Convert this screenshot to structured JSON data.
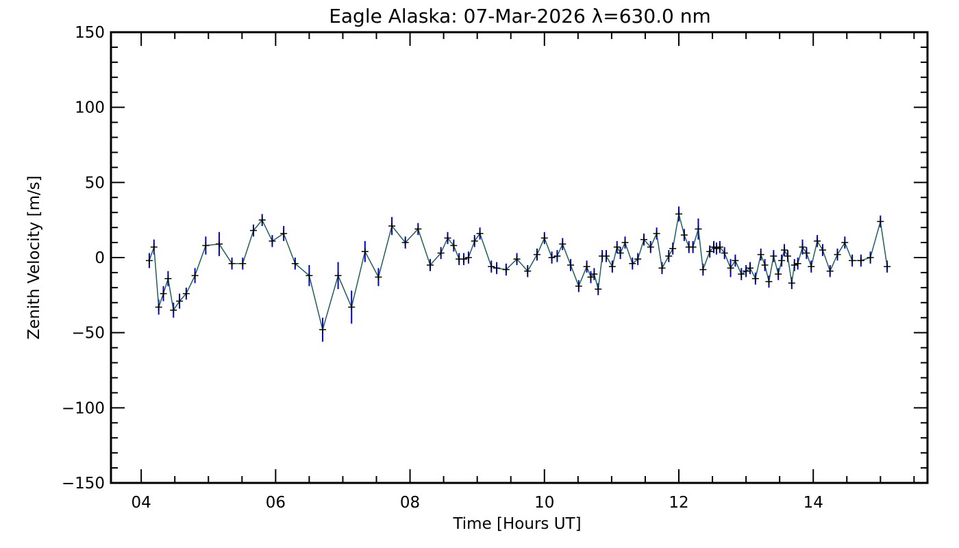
{
  "chart_data": {
    "type": "line",
    "title": "Eagle Alaska: 07-Mar-2026 λ=630.0 nm",
    "xlabel": "Time [Hours UT]",
    "ylabel": "Zenith Velocity [m/s]",
    "xlim": [
      3.55,
      15.7
    ],
    "ylim": [
      -150,
      150
    ],
    "x_ticks": [
      4,
      6,
      8,
      10,
      12,
      14
    ],
    "x_tick_labels": [
      "04",
      "06",
      "08",
      "10",
      "12",
      "14"
    ],
    "x_minor_step": 0.5,
    "y_ticks": [
      -150,
      -100,
      -50,
      0,
      50,
      100,
      150
    ],
    "y_tick_labels": [
      "−150",
      "−100",
      "−50",
      "0",
      "50",
      "100",
      "150"
    ],
    "y_minor_step": 10,
    "grid": false,
    "colors": {
      "line": "#1f5e5a",
      "error_bar": "#0000cc",
      "marker": "#000000",
      "axes": "#000000"
    },
    "series": [
      {
        "name": "Zenith Velocity",
        "x": [
          4.12,
          4.19,
          4.26,
          4.33,
          4.4,
          4.48,
          4.57,
          4.67,
          4.8,
          4.96,
          5.16,
          5.35,
          5.51,
          5.67,
          5.8,
          5.95,
          6.12,
          6.29,
          6.5,
          6.7,
          6.93,
          7.13,
          7.33,
          7.53,
          7.73,
          7.93,
          8.12,
          8.3,
          8.46,
          8.56,
          8.65,
          8.73,
          8.8,
          8.87,
          8.96,
          9.04,
          9.21,
          9.29,
          9.43,
          9.59,
          9.75,
          9.89,
          10.0,
          10.11,
          10.19,
          10.27,
          10.39,
          10.51,
          10.63,
          10.69,
          10.74,
          10.8,
          10.86,
          10.92,
          11.01,
          11.08,
          11.13,
          11.2,
          11.31,
          11.39,
          11.48,
          11.58,
          11.67,
          11.75,
          11.85,
          11.91,
          12.0,
          12.08,
          12.15,
          12.21,
          12.29,
          12.36,
          12.46,
          12.52,
          12.56,
          12.61,
          12.68,
          12.77,
          12.84,
          12.93,
          13.0,
          13.06,
          13.14,
          13.22,
          13.28,
          13.34,
          13.41,
          13.48,
          13.53,
          13.57,
          13.62,
          13.68,
          13.72,
          13.77,
          13.84,
          13.9,
          13.97,
          14.06,
          14.14,
          14.25,
          14.36,
          14.47,
          14.58,
          14.71,
          14.85,
          15.0,
          15.1
        ],
        "y": [
          -2,
          7,
          -33,
          -24,
          -14,
          -35,
          -29,
          -24,
          -12,
          8,
          9,
          -4,
          -4,
          18,
          25,
          11,
          16,
          -4,
          -12,
          -48,
          -12,
          -33,
          4,
          -13,
          21,
          10,
          19,
          -5,
          3,
          13,
          8,
          -1,
          -1,
          0,
          11,
          16,
          -6,
          -7,
          -8,
          -1,
          -9,
          2,
          13,
          0,
          1,
          9,
          -5,
          -19,
          -6,
          -13,
          -11,
          -21,
          1,
          1,
          -6,
          7,
          3,
          10,
          -4,
          -1,
          12,
          7,
          16,
          -7,
          1,
          6,
          29,
          15,
          7,
          7,
          19,
          -8,
          4,
          7,
          6,
          7,
          3,
          -7,
          -2,
          -11,
          -9,
          -7,
          -14,
          2,
          -5,
          -16,
          1,
          -11,
          -2,
          5,
          1,
          -17,
          -5,
          -4,
          7,
          3,
          -6,
          11,
          5,
          -9,
          2,
          10,
          -2,
          -2,
          0,
          24,
          -6
        ],
        "err": [
          5,
          5,
          5,
          5,
          5,
          5,
          5,
          4,
          5,
          6,
          8,
          4,
          4,
          4,
          4,
          4,
          5,
          4,
          7,
          8,
          9,
          11,
          7,
          6,
          6,
          4,
          4,
          4,
          4,
          4,
          4,
          4,
          4,
          4,
          4,
          4,
          4,
          4,
          4,
          4,
          4,
          4,
          4,
          4,
          4,
          4,
          4,
          4,
          4,
          4,
          4,
          4,
          4,
          4,
          4,
          4,
          4,
          4,
          4,
          4,
          4,
          4,
          4,
          4,
          4,
          4,
          5,
          4,
          4,
          4,
          7,
          4,
          4,
          4,
          4,
          4,
          4,
          6,
          4,
          4,
          4,
          4,
          4,
          4,
          4,
          4,
          4,
          4,
          4,
          4,
          4,
          4,
          4,
          4,
          5,
          4,
          4,
          4,
          4,
          4,
          4,
          4,
          4,
          4,
          4,
          4,
          4
        ]
      }
    ]
  }
}
